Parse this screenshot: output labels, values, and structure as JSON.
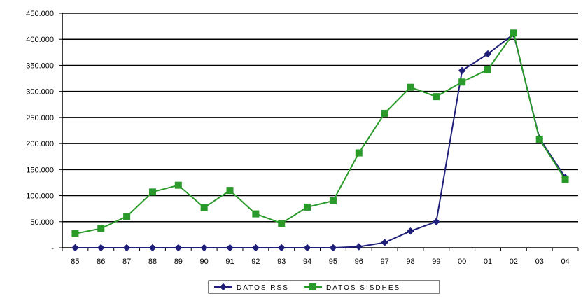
{
  "chart_data": {
    "type": "line",
    "title": "",
    "xlabel": "",
    "ylabel": "",
    "categories": [
      "85",
      "86",
      "87",
      "88",
      "89",
      "90",
      "91",
      "92",
      "93",
      "94",
      "95",
      "96",
      "97",
      "98",
      "99",
      "00",
      "01",
      "02",
      "03",
      "04"
    ],
    "ylim": [
      0,
      450000
    ],
    "yticks": [
      {
        "value": 0,
        "label": "-"
      },
      {
        "value": 50000,
        "label": "50.000"
      },
      {
        "value": 100000,
        "label": "100.000"
      },
      {
        "value": 150000,
        "label": "150.000"
      },
      {
        "value": 200000,
        "label": "200.000"
      },
      {
        "value": 250000,
        "label": "250.000"
      },
      {
        "value": 300000,
        "label": "300.000"
      },
      {
        "value": 350000,
        "label": "350.000"
      },
      {
        "value": 400000,
        "label": "400.000"
      },
      {
        "value": 450000,
        "label": "450.000"
      }
    ],
    "grid": "horizontal",
    "legend_position": "bottom",
    "series": [
      {
        "name": "DATOS RSS",
        "color": "#1f1f7a",
        "marker": "diamond",
        "values": [
          0,
          0,
          0,
          0,
          0,
          0,
          0,
          0,
          0,
          0,
          0,
          2000,
          10000,
          32000,
          50000,
          340000,
          372000,
          410000,
          210000,
          135000
        ]
      },
      {
        "name": "DATOS SISDHES",
        "color": "#2a9a2a",
        "marker": "square",
        "values": [
          27000,
          37000,
          60000,
          107000,
          120000,
          77000,
          110000,
          65000,
          47000,
          78000,
          90000,
          182000,
          258000,
          308000,
          290000,
          318000,
          342000,
          412000,
          208000,
          131000
        ]
      }
    ]
  }
}
